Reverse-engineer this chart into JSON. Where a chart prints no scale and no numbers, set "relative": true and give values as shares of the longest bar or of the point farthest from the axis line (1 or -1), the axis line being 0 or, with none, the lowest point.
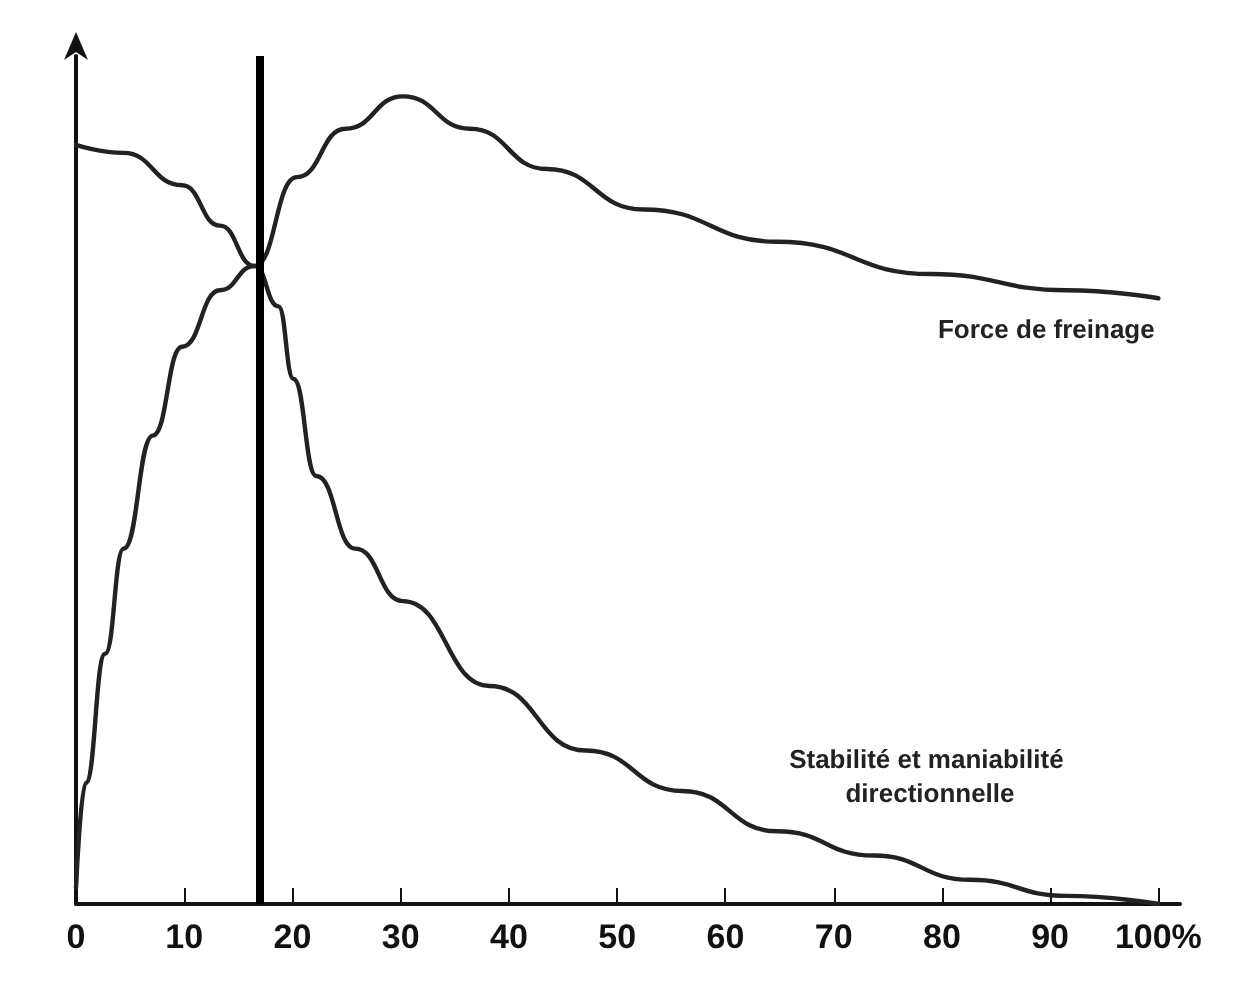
{
  "chart_data": {
    "type": "line",
    "relative": true,
    "marker": "none",
    "line_style": "solid",
    "grid": false,
    "legend": false,
    "xlim": [
      0,
      102
    ],
    "xticks": [
      0,
      10,
      20,
      30,
      40,
      50,
      60,
      70,
      80,
      90,
      {
        "value": 100,
        "label": "100%"
      }
    ],
    "series": [
      {
        "name": "Force de freinage",
        "color": "#222222",
        "x": [
          0,
          0.9,
          2.7,
          4.4,
          7.1,
          9.8,
          13.3,
          16.5,
          20.4,
          24.9,
          30.2,
          36.4,
          43.5,
          52.4,
          64.8,
          79,
          91.5,
          100
        ],
        "values": [
          0.02,
          0.15,
          0.31,
          0.44,
          0.58,
          0.69,
          0.76,
          0.79,
          0.9,
          0.96,
          1,
          0.96,
          0.91,
          0.86,
          0.82,
          0.78,
          0.76,
          0.75
        ]
      },
      {
        "name": "Stabilité et maniabilité directionnelle",
        "color": "#222222",
        "x": [
          0,
          4.4,
          9.8,
          13.3,
          16.5,
          18.7,
          20.1,
          22.2,
          25.8,
          30.2,
          38.2,
          47.1,
          56,
          64.8,
          73.7,
          82.6,
          91.5,
          100
        ],
        "values": [
          0.94,
          0.93,
          0.89,
          0.84,
          0.79,
          0.74,
          0.65,
          0.53,
          0.44,
          0.375,
          0.27,
          0.19,
          0.14,
          0.09,
          0.06,
          0.03,
          0.01,
          0
        ]
      }
    ],
    "ref_lines": [
      {
        "axis": "x",
        "value": 17,
        "color": "#000000",
        "line_style": "solid"
      }
    ]
  }
}
